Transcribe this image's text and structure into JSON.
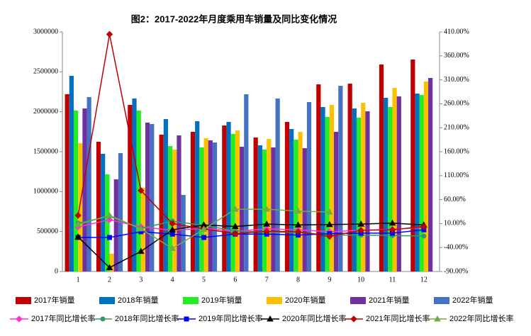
{
  "chart_data": {
    "type": "bar",
    "title": "图2：2017-2022年月度乘用车销量及同比变化情况",
    "categories": [
      "1",
      "2",
      "3",
      "4",
      "5",
      "6",
      "7",
      "8",
      "9",
      "10",
      "11",
      "12"
    ],
    "ylim": [
      0,
      3000000
    ],
    "yticks": [
      0,
      500000,
      1000000,
      1500000,
      2000000,
      2500000,
      3000000
    ],
    "y2lim": [
      -90,
      410
    ],
    "y2ticks": [
      {
        "value": -90,
        "label": "-90.00%"
      },
      {
        "value": -40,
        "label": "-40.00%"
      },
      {
        "value": 10,
        "label": "10.00%"
      },
      {
        "value": 60,
        "label": "60.00%"
      },
      {
        "value": 110,
        "label": "110.00%"
      },
      {
        "value": 160,
        "label": "160.00%"
      },
      {
        "value": 210,
        "label": "210.00%"
      },
      {
        "value": 260,
        "label": "260.00%"
      },
      {
        "value": 310,
        "label": "310.00%"
      },
      {
        "value": 360,
        "label": "360.00%"
      },
      {
        "value": 410,
        "label": "410.00%"
      }
    ],
    "grid": false,
    "series": [
      {
        "name": "2017年销量",
        "type": "bar",
        "color": "#c00000",
        "values": [
          2220000,
          1624000,
          2086000,
          1713000,
          1749000,
          1828000,
          1678000,
          1873000,
          2343000,
          2352000,
          2592000,
          2654000
        ]
      },
      {
        "name": "2018年销量",
        "type": "bar",
        "color": "#0070c0",
        "values": [
          2450000,
          1473000,
          2166000,
          1908000,
          1882000,
          1873000,
          1580000,
          1784000,
          2059000,
          2041000,
          2175000,
          2228000
        ]
      },
      {
        "name": "2019年销量",
        "type": "bar",
        "color": "#22ee22",
        "values": [
          2015000,
          1216000,
          2015000,
          1571000,
          1553000,
          1722000,
          1527000,
          1651000,
          1935000,
          1926000,
          2059000,
          2210000
        ]
      },
      {
        "name": "2020年销量",
        "type": "bar",
        "color": "#ffc000",
        "values": [
          1607000,
          222000,
          1050000,
          1527000,
          1669000,
          1766000,
          1660000,
          1749000,
          2086000,
          2112000,
          2299000,
          2379000
        ]
      },
      {
        "name": "2021年销量",
        "type": "bar",
        "color": "#7030a0",
        "values": [
          2041000,
          1154000,
          1864000,
          1704000,
          1642000,
          1562000,
          1553000,
          1544000,
          1749000,
          2006000,
          2192000,
          2423000
        ]
      },
      {
        "name": "2022年销量",
        "type": "bar",
        "color": "#4472c4",
        "values": [
          2184000,
          1482000,
          1846000,
          959000,
          1615000,
          2219000,
          2166000,
          2121000,
          2325000,
          null,
          null,
          null
        ]
      },
      {
        "name": "2017年同比增长率",
        "type": "line",
        "axis": "y2",
        "marker": "diamond",
        "color": "#ff33cc",
        "values": [
          3,
          18,
          3,
          -4,
          0,
          -6,
          -1,
          -3,
          -7,
          -4,
          -2,
          2
        ]
      },
      {
        "name": "2018年同比增长率",
        "type": "line",
        "axis": "y2",
        "marker": "circle",
        "color": "#339966",
        "values": [
          11,
          25,
          0,
          15,
          6,
          -5,
          -8,
          -8,
          -14,
          -14,
          -15,
          -16
        ]
      },
      {
        "name": "2019年同比增长率",
        "type": "line",
        "axis": "y2",
        "marker": "square",
        "color": "#0000ff",
        "values": [
          -19,
          -19,
          -7,
          -12,
          -19,
          -12,
          -12,
          -14,
          -11,
          -10,
          -10,
          -3
        ]
      },
      {
        "name": "2020年同比增长率",
        "type": "line",
        "axis": "y2",
        "marker": "triangle",
        "color": "#000000",
        "values": [
          -18,
          -82,
          -48,
          -3,
          7,
          4,
          9,
          7,
          8,
          9,
          11,
          7
        ]
      },
      {
        "name": "2021年同比增长率",
        "type": "line",
        "axis": "y2",
        "marker": "diamond",
        "color": "#c00000",
        "values": [
          27,
          405,
          79,
          10,
          -1,
          -11,
          -6,
          -7,
          -17,
          -4,
          -3,
          4
        ]
      },
      {
        "name": "2022年同比增长率",
        "type": "line",
        "axis": "y2",
        "marker": "triangle",
        "color": "#70ad47",
        "values": [
          8,
          27,
          -1,
          -42,
          -2,
          40,
          40,
          36,
          34,
          null,
          null,
          null
        ]
      }
    ]
  }
}
